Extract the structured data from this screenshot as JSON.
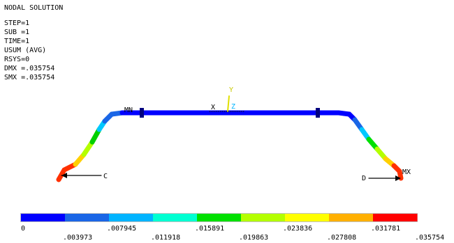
{
  "header": {
    "title": "NODAL SOLUTION",
    "lines": [
      "STEP=1",
      "SUB =1",
      "TIME=1",
      "USUM     (AVG)",
      "RSYS=0",
      "DMX =.035754",
      "SMX =.035754"
    ]
  },
  "model": {
    "min_label": "MN",
    "max_label": "MX",
    "x_axis": "X",
    "y_axis": "Y",
    "z_axis": "Z",
    "point_c": "C",
    "point_d": "D"
  },
  "legend": {
    "colors": [
      "#0000ff",
      "#1a66e6",
      "#00b4ff",
      "#00ffd2",
      "#00e000",
      "#b4ff00",
      "#ffff00",
      "#ffb000",
      "#ff0000"
    ],
    "labels": [
      "0",
      ".003973",
      ".007945",
      ".011918",
      ".015891",
      ".019863",
      ".023836",
      ".027808",
      ".031781",
      ".035754"
    ]
  }
}
